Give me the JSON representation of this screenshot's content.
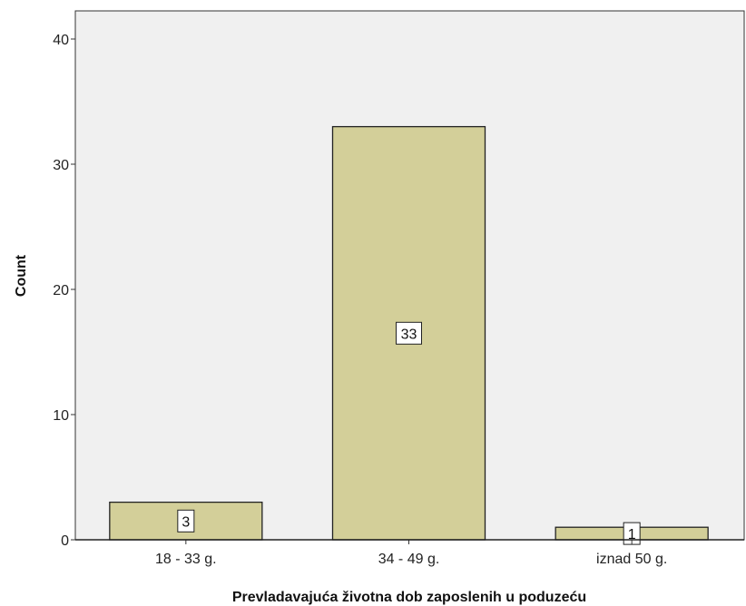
{
  "chart_data": {
    "type": "bar",
    "categories": [
      "18 - 33 g.",
      "34 - 49 g.",
      "iznad 50 g."
    ],
    "values": [
      3,
      33,
      1
    ],
    "data_labels": [
      "3",
      "33",
      "1"
    ],
    "xlabel": "Prevladavajuća životna dob zaposlenih u poduzeću",
    "ylabel": "Count",
    "ylim": [
      0,
      42
    ],
    "yticks": [
      0,
      10,
      20,
      30,
      40
    ],
    "ytick_labels": [
      "0",
      "10",
      "20",
      "30",
      "40"
    ],
    "grid": false,
    "legend": "none",
    "colors": {
      "bar_fill": "#d3cf99",
      "bar_stroke": "#222222",
      "plot_background": "#f0f0f0"
    }
  }
}
